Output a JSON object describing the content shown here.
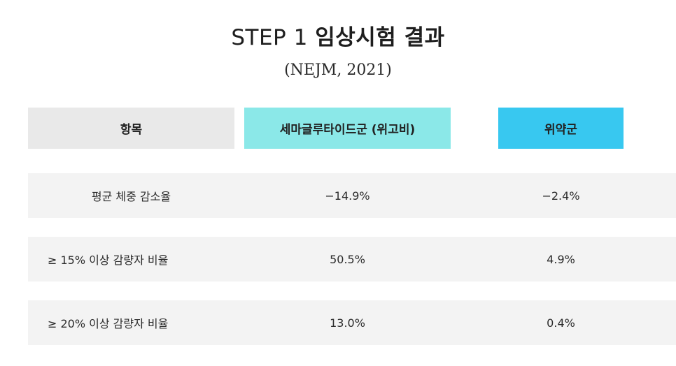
{
  "header": {
    "title_prefix": "STEP 1",
    "title_main": "임상시험 결과",
    "subtitle": "(NEJM, 2021)"
  },
  "table": {
    "columns": [
      "항목",
      "세마글루타이드군 (위고비)",
      "위약군"
    ],
    "column_colors": [
      "#e9e9e9",
      "#8be8e8",
      "#38c8f0"
    ],
    "rows": [
      {
        "label": "평균 체중 감소율",
        "semaglutide": "−14.9%",
        "placebo": "−2.4%"
      },
      {
        "label": "≥ 15% 이상 감량자 비율",
        "semaglutide": "50.5%",
        "placebo": "4.9%"
      },
      {
        "label": "≥ 20% 이상 감량자 비율",
        "semaglutide": "13.0%",
        "placebo": "0.4%"
      }
    ]
  }
}
